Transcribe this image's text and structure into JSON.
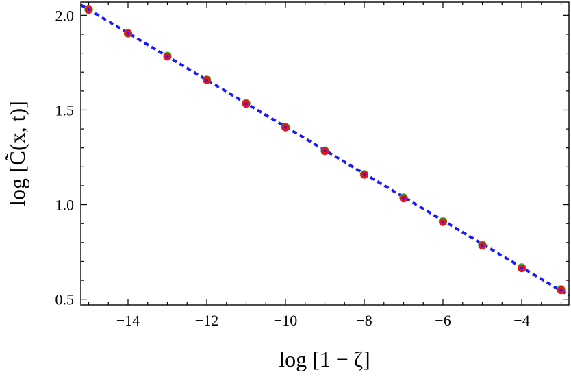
{
  "chart_data": {
    "type": "scatter",
    "xlabel": "log [1 − ζ]",
    "ylabel": "log [C̃(x, t)]",
    "xlim": [
      -15.2,
      -2.8
    ],
    "ylim": [
      0.47,
      2.07
    ],
    "x_ticks": [
      -14,
      -12,
      -10,
      -8,
      -6,
      -4
    ],
    "x_tick_labels": [
      "−14",
      "−12",
      "−10",
      "−8",
      "−6",
      "−4"
    ],
    "y_ticks": [
      0.5,
      1.0,
      1.5,
      2.0
    ],
    "y_tick_labels": [
      "0.5",
      "1.0",
      "1.5",
      "2.0"
    ],
    "grid": false,
    "series": [
      {
        "marker": "circle",
        "color": "#22cc22",
        "x": [
          -15,
          -14,
          -13,
          -12,
          -11,
          -10,
          -9,
          -8,
          -7,
          -6,
          -5,
          -4,
          -3
        ],
        "y": [
          2.03,
          1.905,
          1.785,
          1.66,
          1.535,
          1.41,
          1.285,
          1.16,
          1.037,
          0.912,
          0.788,
          0.668,
          0.552
        ]
      },
      {
        "marker": "circle",
        "color": "#e8141e",
        "x": [
          -15,
          -14,
          -13,
          -12,
          -11,
          -10,
          -9,
          -8,
          -7,
          -6,
          -5,
          -4,
          -3
        ],
        "y": [
          2.03,
          1.905,
          1.782,
          1.658,
          1.533,
          1.408,
          1.283,
          1.158,
          1.033,
          0.908,
          0.784,
          0.664,
          0.548
        ]
      },
      {
        "marker": "dashed-line",
        "color": "#1a1aff",
        "x": [
          -15.2,
          -2.8
        ],
        "y": [
          2.055,
          0.52
        ]
      }
    ]
  }
}
